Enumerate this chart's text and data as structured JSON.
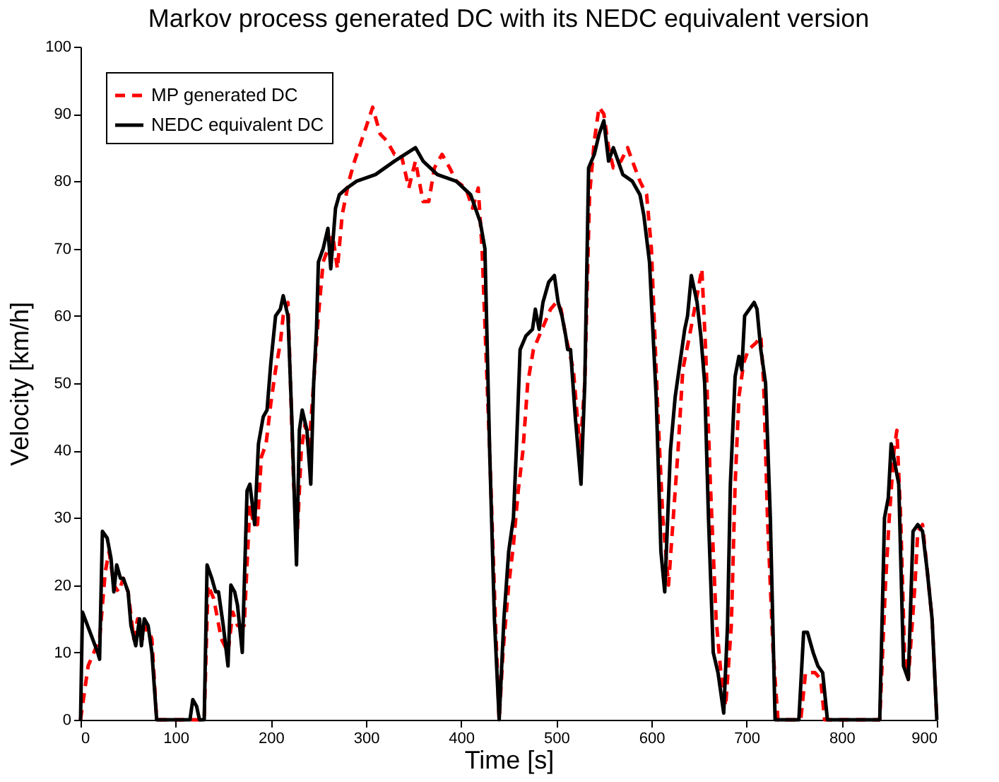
{
  "chart_data": {
    "type": "line",
    "title": "Markov process generated DC with its NEDC equivalent version",
    "xlabel": "Time [s]",
    "ylabel": "Velocity [km/h]",
    "xlim": [
      0,
      900
    ],
    "ylim": [
      0,
      100
    ],
    "xticks": [
      0,
      100,
      200,
      300,
      400,
      500,
      600,
      700,
      800,
      900
    ],
    "yticks": [
      0,
      10,
      20,
      30,
      40,
      50,
      60,
      70,
      80,
      90,
      100
    ],
    "grid": false,
    "legend": "top left",
    "marker": "none",
    "series": [
      {
        "name": "MP generated DC",
        "color": "#ff0000",
        "line_style": "dashed",
        "x": [
          0,
          3,
          8,
          14,
          20,
          26,
          30,
          35,
          40,
          45,
          50,
          56,
          60,
          65,
          70,
          75,
          80,
          130,
          134,
          140,
          148,
          155,
          160,
          165,
          172,
          178,
          182,
          186,
          190,
          195,
          200,
          205,
          210,
          213,
          218,
          224,
          228,
          232,
          236,
          240,
          245,
          250,
          255,
          260,
          265,
          270,
          275,
          282,
          288,
          300,
          307,
          315,
          322,
          330,
          337,
          345,
          352,
          360,
          366,
          372,
          380,
          388,
          395,
          405,
          412,
          418,
          422,
          430,
          436,
          440,
          444,
          450,
          455,
          460,
          465,
          470,
          476,
          482,
          488,
          494,
          500,
          505,
          510,
          518,
          525,
          530,
          535,
          540,
          545,
          550,
          555,
          560,
          568,
          575,
          580,
          588,
          595,
          600,
          607,
          612,
          618,
          623,
          628,
          633,
          640,
          648,
          653,
          657,
          662,
          668,
          673,
          678,
          684,
          688,
          692,
          697,
          702,
          710,
          715,
          718,
          722,
          728,
          733,
          757,
          762,
          772,
          778,
          782,
          840,
          846,
          850,
          855,
          858,
          862,
          866,
          870,
          877,
          880,
          885,
          890,
          895,
          900
        ],
        "values": [
          0,
          3,
          8,
          10,
          12,
          22,
          25,
          20,
          19,
          21,
          19,
          12,
          15,
          12,
          14,
          12,
          0,
          0,
          20,
          18,
          12,
          10,
          16,
          14,
          14,
          32,
          29,
          29,
          39,
          41,
          47,
          52,
          56,
          60,
          62,
          35,
          28,
          40,
          44,
          40,
          50,
          60,
          68,
          70,
          72,
          67,
          75,
          80,
          83,
          88,
          91,
          87,
          86,
          84,
          84,
          79,
          83,
          77,
          77,
          82,
          84,
          82,
          80,
          79,
          76,
          79,
          70,
          40,
          15,
          0,
          10,
          20,
          26,
          34,
          40,
          50,
          55,
          57,
          59,
          61,
          62,
          61,
          57,
          52,
          40,
          50,
          78,
          86,
          91,
          90,
          85,
          82,
          83,
          85,
          83,
          80,
          78,
          70,
          45,
          30,
          20,
          30,
          40,
          52,
          57,
          63,
          67,
          55,
          35,
          15,
          7,
          2,
          14,
          35,
          48,
          53,
          55,
          56,
          57,
          50,
          30,
          10,
          0,
          0,
          7,
          7,
          6,
          0,
          0,
          20,
          30,
          40,
          43,
          30,
          10,
          6,
          20,
          28,
          29,
          22,
          15,
          0
        ]
      },
      {
        "name": "NEDC equivalent DC",
        "color": "#000000",
        "line_style": "solid",
        "x": [
          0,
          2,
          10,
          18,
          20,
          23,
          28,
          32,
          35,
          38,
          42,
          45,
          50,
          53,
          58,
          62,
          64,
          67,
          71,
          75,
          80,
          115,
          118,
          122,
          125,
          130,
          133,
          138,
          142,
          145,
          150,
          155,
          158,
          162,
          165,
          170,
          175,
          178,
          183,
          187,
          192,
          196,
          200,
          205,
          210,
          213,
          218,
          222,
          227,
          230,
          233,
          238,
          242,
          245,
          248,
          250,
          255,
          260,
          263,
          268,
          272,
          280,
          290,
          310,
          330,
          352,
          360,
          375,
          395,
          410,
          420,
          425,
          430,
          435,
          440,
          445,
          450,
          455,
          458,
          462,
          468,
          475,
          478,
          482,
          486,
          492,
          498,
          502,
          506,
          510,
          512,
          515,
          520,
          526,
          530,
          534,
          540,
          545,
          550,
          555,
          560,
          565,
          570,
          580,
          588,
          592,
          598,
          605,
          610,
          614,
          620,
          625,
          630,
          635,
          638,
          642,
          648,
          652,
          656,
          660,
          665,
          670,
          672,
          676,
          680,
          683,
          688,
          692,
          695,
          698,
          703,
          708,
          711,
          715,
          720,
          725,
          730,
          755,
          760,
          764,
          770,
          775,
          780,
          785,
          840,
          845,
          849,
          852,
          856,
          860,
          865,
          870,
          875,
          880,
          885,
          890,
          895,
          900
        ],
        "values": [
          0,
          16,
          13,
          10,
          9,
          28,
          27,
          24,
          19,
          23,
          21,
          21,
          19,
          14,
          11,
          15,
          11,
          15,
          14,
          10,
          0,
          0,
          3,
          2,
          0,
          0,
          23,
          21,
          19,
          19,
          14,
          8,
          20,
          19,
          17,
          10,
          34,
          35,
          29,
          41,
          45,
          46,
          53,
          60,
          61,
          63,
          60,
          45,
          23,
          43,
          46,
          43,
          35,
          50,
          58,
          68,
          70,
          73,
          67,
          76,
          78,
          79,
          80,
          81,
          83,
          85,
          83,
          81,
          80,
          78,
          74,
          70,
          40,
          15,
          0,
          15,
          25,
          30,
          40,
          55,
          57,
          58,
          61,
          58,
          62,
          65,
          66,
          62,
          60,
          57,
          55,
          55,
          45,
          35,
          50,
          82,
          84,
          87,
          89,
          83,
          85,
          83,
          81,
          80,
          78,
          75,
          68,
          48,
          25,
          19,
          40,
          48,
          53,
          58,
          60,
          66,
          62,
          57,
          50,
          30,
          10,
          7,
          5,
          1,
          14,
          35,
          51,
          54,
          52,
          60,
          61,
          62,
          61,
          55,
          50,
          30,
          0,
          0,
          13,
          13,
          10,
          8,
          7,
          0,
          0,
          30,
          33,
          41,
          38,
          35,
          8,
          6,
          28,
          29,
          28,
          22,
          15,
          0
        ]
      }
    ]
  }
}
